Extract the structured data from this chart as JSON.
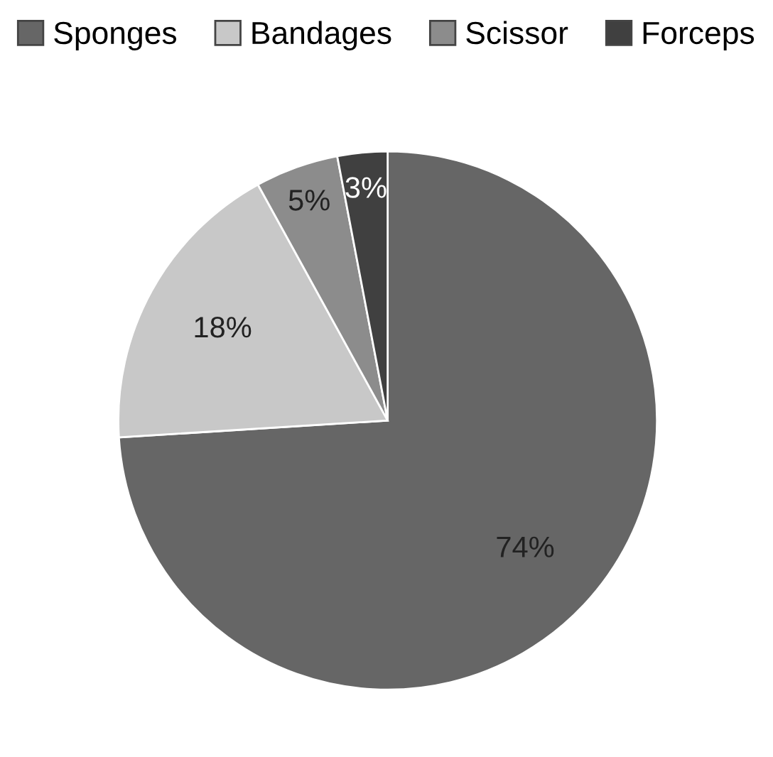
{
  "chart_data": {
    "type": "pie",
    "categories": [
      "Sponges",
      "Bandages",
      "Scissor",
      "Forceps"
    ],
    "values": [
      74,
      18,
      5,
      3
    ],
    "colors": [
      "#666666",
      "#c8c8c8",
      "#8c8c8c",
      "#404040"
    ],
    "value_labels": [
      "74%",
      "18%",
      "5%",
      "3%"
    ],
    "legend": "top"
  }
}
